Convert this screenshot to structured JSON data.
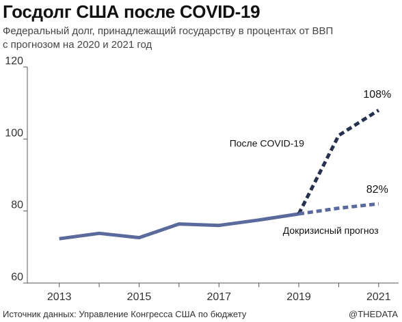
{
  "title": "Госдолг США после COVID-19",
  "subtitle": {
    "line1": "Федеральный долг, принадлежащий государству в процентах от ВВП",
    "line2": "с прогнозом на 2020 и 2021 год"
  },
  "footer": {
    "source": "Источник данных: Управление Конгресса США по бюджету",
    "credit": "@THEDATA"
  },
  "colors": {
    "actual": "#5b6a9c",
    "covid": "#27314f",
    "precrisis": "#5b6a9c"
  },
  "chart_data": {
    "type": "line",
    "title": "Госдолг США после COVID-19",
    "xlabel": "",
    "ylabel": "",
    "xlim": [
      2012.2,
      2021.5
    ],
    "ylim": [
      60,
      120
    ],
    "x_ticks": [
      "2013",
      "2015",
      "2017",
      "2019",
      "2021"
    ],
    "y_ticks": [
      "60",
      "80",
      "100",
      "120"
    ],
    "grid": false,
    "series": [
      {
        "style": "solid",
        "x": [
          2013,
          2014,
          2015,
          2016,
          2017,
          2018,
          2019
        ],
        "y": [
          72.3,
          73.8,
          72.6,
          76.4,
          76.0,
          77.5,
          79.2
        ]
      },
      {
        "name": "После COVID-19",
        "style": "dashed",
        "x": [
          2019,
          2020,
          2021
        ],
        "y": [
          79.2,
          101.0,
          108.0
        ],
        "end_label": "108%"
      },
      {
        "name": "Докризисный прогноз",
        "style": "dashed",
        "x": [
          2019,
          2020,
          2021
        ],
        "y": [
          79.2,
          80.8,
          82.0
        ],
        "end_label": "82%"
      }
    ]
  }
}
